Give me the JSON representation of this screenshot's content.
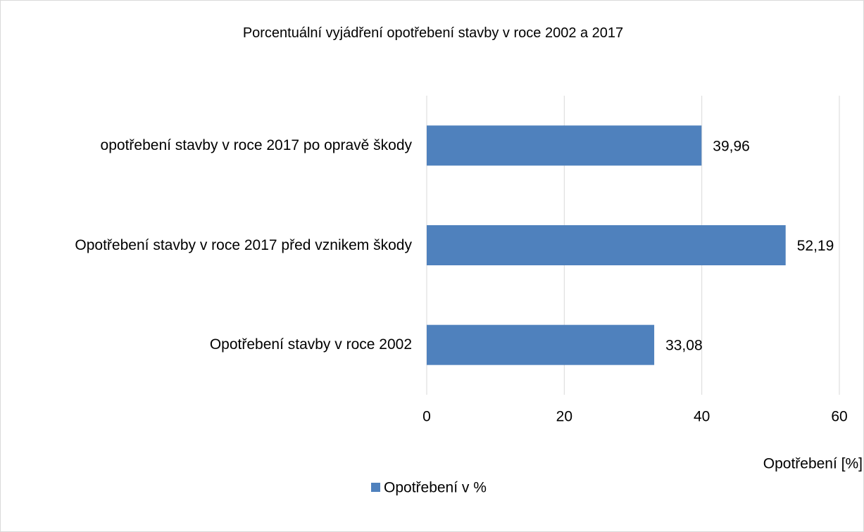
{
  "chart_data": {
    "type": "bar",
    "orientation": "horizontal",
    "title": "Porcentuální vyjádření opotřebení stavby v roce 2002 a 2017",
    "categories": [
      "opotřebení stavby v roce 2017 po opravě škody",
      "Opotřebení stavby v roce 2017 před vznikem škody",
      "Opotřebení stavby v roce 2002"
    ],
    "series": [
      {
        "name": "Opotřebení v %",
        "color": "#4f81bd",
        "values": [
          39.96,
          52.19,
          33.08
        ],
        "value_labels": [
          "39,96",
          "52,19",
          "33,08"
        ]
      }
    ],
    "x_label": "Opotřebení [%]",
    "xlim": [
      0,
      60
    ],
    "xticks": [
      0,
      20,
      40,
      60
    ],
    "grid": true,
    "legend": "bottom"
  }
}
